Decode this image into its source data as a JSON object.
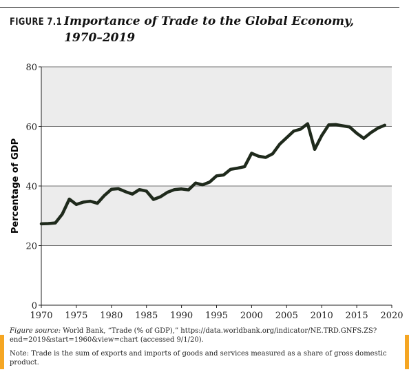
{
  "figure": {
    "label": "FIGURE 7.1",
    "title": "Importance of Trade to the Global Economy, 1970–2019"
  },
  "caption": {
    "source_lead": "Figure source:",
    "source_text": " World Bank, “Trade (% of GDP),” https://data.worldbank.org/indicator/NE.TRD.GNFS.ZS?end=2019&start=1960&view=chart (accessed 9/1/20).",
    "note": "Note: Trade is the sum of exports and imports of goods and services measured as a share of gross domestic product."
  },
  "colors": {
    "line": "#1f2a1c",
    "band": "#ececec",
    "gridline": "#444444",
    "accent": "#f5a623"
  },
  "chart_data": {
    "type": "line",
    "title": "",
    "xlabel": "",
    "ylabel": "Percentage of GDP",
    "xlim": [
      1970,
      2020
    ],
    "ylim": [
      0,
      80
    ],
    "xticks": [
      1970,
      1975,
      1980,
      1985,
      1990,
      1995,
      2000,
      2005,
      2010,
      2015,
      2020
    ],
    "yticks": [
      0,
      20,
      40,
      60,
      80
    ],
    "grid": "horizontal",
    "shaded_bands": [
      [
        20,
        40
      ],
      [
        60,
        80
      ]
    ],
    "series": [
      {
        "x": [
          1970,
          1971,
          1972,
          1973,
          1974,
          1975,
          1976,
          1977,
          1978,
          1979,
          1980,
          1981,
          1982,
          1983,
          1984,
          1985,
          1986,
          1987,
          1988,
          1989,
          1990,
          1991,
          1992,
          1993,
          1994,
          1995,
          1996,
          1997,
          1998,
          1999,
          2000,
          2001,
          2002,
          2003,
          2004,
          2005,
          2006,
          2007,
          2008,
          2009,
          2010,
          2011,
          2012,
          2013,
          2014,
          2015,
          2016,
          2017,
          2018,
          2019
        ],
        "values": [
          27.3,
          27.4,
          27.6,
          30.6,
          35.6,
          33.8,
          34.6,
          34.9,
          34.2,
          36.8,
          38.9,
          39.1,
          38.1,
          37.3,
          38.8,
          38.3,
          35.5,
          36.4,
          37.9,
          38.8,
          39.0,
          38.7,
          41.0,
          40.4,
          41.3,
          43.4,
          43.7,
          45.6,
          46.0,
          46.5,
          51.0,
          50.0,
          49.6,
          50.8,
          54.0,
          56.2,
          58.4,
          59.1,
          60.9,
          52.3,
          56.9,
          60.5,
          60.6,
          60.2,
          59.8,
          57.7,
          56.0,
          57.9,
          59.4,
          60.4
        ]
      }
    ]
  }
}
